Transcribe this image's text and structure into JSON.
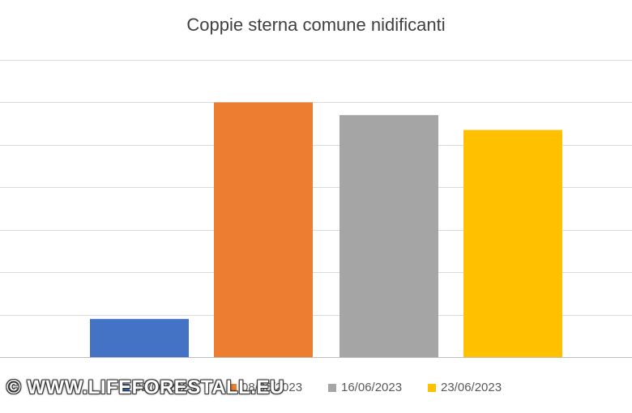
{
  "chart_data": {
    "type": "bar",
    "title": "Coppie sterna comune nidificanti",
    "categories": [
      "02/06/2023",
      "08/06/2023",
      "16/06/2023",
      "23/06/2023"
    ],
    "values": [
      9,
      60,
      57,
      53.5
    ],
    "ylim": [
      0,
      70
    ],
    "grid": true,
    "colors": [
      "#4472C4",
      "#ED7D31",
      "#A5A5A5",
      "#FFC000"
    ],
    "legend_position": "bottom",
    "xlabel": "",
    "ylabel": ""
  },
  "watermark": "© WWW.LIFEFORESTALL.EU"
}
